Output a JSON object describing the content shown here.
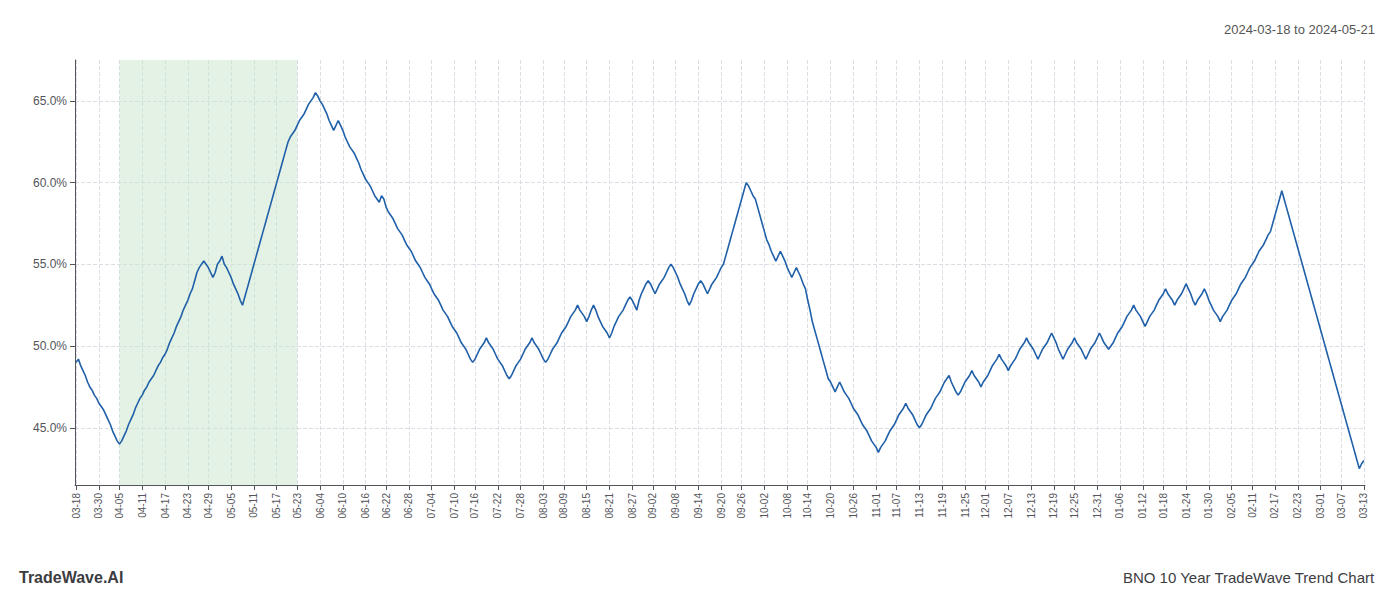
{
  "chart_data": {
    "type": "line",
    "title": "BNO 10 Year TradeWave Trend Chart",
    "subtitle": "2024-03-18 to 2024-05-21",
    "annotations": [
      "TradeWave.AI"
    ],
    "color": "#2060a8",
    "grid": true,
    "span": {
      "start": "04-05",
      "end": "05-23",
      "color": "#c8e6c9"
    },
    "ylim": [
      41.5,
      67.5
    ],
    "yticks": [
      {
        "value": 45.0,
        "label": "45.0%"
      },
      {
        "value": 50.0,
        "label": "50.0%"
      },
      {
        "value": 55.0,
        "label": "55.0%"
      },
      {
        "value": 60.0,
        "label": "60.0%"
      },
      {
        "value": 65.0,
        "label": "65.0%"
      }
    ],
    "categories": [
      "03-18",
      null,
      null,
      null,
      null,
      null,
      null,
      null,
      null,
      null,
      "03-30",
      null,
      null,
      null,
      null,
      null,
      null,
      null,
      null,
      "04-05",
      null,
      null,
      null,
      null,
      null,
      null,
      null,
      null,
      null,
      "04-11",
      null,
      null,
      null,
      null,
      null,
      null,
      null,
      null,
      null,
      "04-17",
      null,
      null,
      null,
      null,
      null,
      null,
      null,
      null,
      null,
      "04-23",
      null,
      null,
      null,
      null,
      null,
      null,
      null,
      null,
      "04-29",
      null,
      null,
      null,
      null,
      null,
      null,
      null,
      null,
      null,
      "05-05",
      null,
      null,
      null,
      null,
      null,
      null,
      null,
      null,
      null,
      "05-11",
      null,
      null,
      null,
      null,
      null,
      null,
      null,
      null,
      null,
      "05-17",
      null,
      null,
      null,
      null,
      null,
      null,
      null,
      null,
      "05-23",
      null,
      null,
      null,
      null,
      null,
      null,
      null,
      null,
      null,
      "06-04",
      null,
      null,
      null,
      null,
      null,
      null,
      null,
      null,
      null,
      "06-10",
      null,
      null,
      null,
      null,
      null,
      null,
      null,
      null,
      null,
      "06-16",
      null,
      null,
      null,
      null,
      null,
      null,
      null,
      null,
      "06-22",
      null,
      null,
      null,
      null,
      null,
      null,
      null,
      null,
      null,
      "06-28",
      null,
      null,
      null,
      null,
      null,
      null,
      null,
      null,
      null,
      "07-04",
      null,
      null,
      null,
      null,
      null,
      null,
      null,
      null,
      null,
      "07-10",
      null,
      null,
      null,
      null,
      null,
      null,
      null,
      null,
      "07-16",
      null,
      null,
      null,
      null,
      null,
      null,
      null,
      null,
      null,
      "07-22",
      null,
      null,
      null,
      null,
      null,
      null,
      null,
      null,
      null,
      "07-28",
      null,
      null,
      null,
      null,
      null,
      null,
      null,
      null,
      null,
      "08-03",
      null,
      null,
      null,
      null,
      null,
      null,
      null,
      null,
      "08-09",
      null,
      null,
      null,
      null,
      null,
      null,
      null,
      null,
      null,
      "08-15",
      null,
      null,
      null,
      null,
      null,
      null,
      null,
      null,
      null,
      "08-21",
      null,
      null,
      null,
      null,
      null,
      null,
      null,
      null,
      null,
      "08-27",
      null,
      null,
      null,
      null,
      null,
      null,
      null,
      null,
      "09-02",
      null,
      null,
      null,
      null,
      null,
      null,
      null,
      null,
      null,
      "09-08",
      null,
      null,
      null,
      null,
      null,
      null,
      null,
      null,
      null,
      "09-14",
      null,
      null,
      null,
      null,
      null,
      null,
      null,
      null,
      null,
      "09-20",
      null,
      null,
      null,
      null,
      null,
      null,
      null,
      null,
      "09-26",
      null,
      null,
      null,
      null,
      null,
      null,
      null,
      null,
      null,
      "10-02",
      null,
      null,
      null,
      null,
      null,
      null,
      null,
      null,
      null,
      "10-08",
      null,
      null,
      null,
      null,
      null,
      null,
      null,
      null,
      "10-14",
      null,
      null,
      null,
      null,
      null,
      null,
      null,
      null,
      null,
      "10-20",
      null,
      null,
      null,
      null,
      null,
      null,
      null,
      null,
      null,
      "10-26",
      null,
      null,
      null,
      null,
      null,
      null,
      null,
      null,
      null,
      "11-01",
      null,
      null,
      null,
      null,
      null,
      null,
      null,
      null,
      "11-07",
      null,
      null,
      null,
      null,
      null,
      null,
      null,
      null,
      null,
      "11-13",
      null,
      null,
      null,
      null,
      null,
      null,
      null,
      null,
      null,
      "11-19",
      null,
      null,
      null,
      null,
      null,
      null,
      null,
      null,
      null,
      "11-25",
      null,
      null,
      null,
      null,
      null,
      null,
      null,
      null,
      "12-01",
      null,
      null,
      null,
      null,
      null,
      null,
      null,
      null,
      null,
      "12-07",
      null,
      null,
      null,
      null,
      null,
      null,
      null,
      null,
      null,
      "12-13",
      null,
      null,
      null,
      null,
      null,
      null,
      null,
      null,
      null,
      "12-19",
      null,
      null,
      null,
      null,
      null,
      null,
      null,
      null,
      "12-25",
      null,
      null,
      null,
      null,
      null,
      null,
      null,
      null,
      null,
      "12-31",
      null,
      null,
      null,
      null,
      null,
      null,
      null,
      null,
      null,
      "01-06",
      null,
      null,
      null,
      null,
      null,
      null,
      null,
      null,
      null,
      "01-12",
      null,
      null,
      null,
      null,
      null,
      null,
      null,
      null,
      "01-18",
      null,
      null,
      null,
      null,
      null,
      null,
      null,
      null,
      null,
      "01-24",
      null,
      null,
      null,
      null,
      null,
      null,
      null,
      null,
      null,
      "01-30",
      null,
      null,
      null,
      null,
      null,
      null,
      null,
      null,
      null,
      "02-05",
      null,
      null,
      null,
      null,
      null,
      null,
      null,
      null,
      "02-11",
      null,
      null,
      null,
      null,
      null,
      null,
      null,
      null,
      null,
      "02-17",
      null,
      null,
      null,
      null,
      null,
      null,
      null,
      null,
      null,
      "02-23",
      null,
      null,
      null,
      null,
      null,
      null,
      null,
      null,
      null,
      "03-01",
      null,
      null,
      null,
      null,
      null,
      null,
      null,
      null,
      "03-07",
      null,
      null,
      null,
      null,
      null,
      null,
      null,
      null,
      null,
      "03-13"
    ],
    "values": [
      49.0,
      49.2,
      48.8,
      48.5,
      48.2,
      47.8,
      47.5,
      47.3,
      47.0,
      46.8,
      46.5,
      46.3,
      46.1,
      45.8,
      45.5,
      45.2,
      44.8,
      44.5,
      44.2,
      44.0,
      44.2,
      44.5,
      44.8,
      45.2,
      45.5,
      45.8,
      46.2,
      46.5,
      46.8,
      47.0,
      47.3,
      47.5,
      47.8,
      48.0,
      48.2,
      48.5,
      48.8,
      49.0,
      49.3,
      49.5,
      49.8,
      50.2,
      50.5,
      50.8,
      51.2,
      51.5,
      51.8,
      52.2,
      52.5,
      52.8,
      53.2,
      53.5,
      54.0,
      54.5,
      54.8,
      55.0,
      55.2,
      55.0,
      54.8,
      54.5,
      54.2,
      54.5,
      55.0,
      55.2,
      55.5,
      55.0,
      54.8,
      54.5,
      54.2,
      53.8,
      53.5,
      53.2,
      52.8,
      52.5,
      53.0,
      53.5,
      54.0,
      54.5,
      55.0,
      55.5,
      56.0,
      56.5,
      57.0,
      57.5,
      58.0,
      58.5,
      59.0,
      59.5,
      60.0,
      60.5,
      61.0,
      61.5,
      62.0,
      62.5,
      62.8,
      63.0,
      63.2,
      63.5,
      63.8,
      64.0,
      64.2,
      64.5,
      64.8,
      65.0,
      65.2,
      65.5,
      65.3,
      65.0,
      64.8,
      64.5,
      64.2,
      63.8,
      63.5,
      63.2,
      63.5,
      63.8,
      63.5,
      63.2,
      62.8,
      62.5,
      62.2,
      62.0,
      61.8,
      61.5,
      61.2,
      60.8,
      60.5,
      60.2,
      60.0,
      59.8,
      59.5,
      59.2,
      59.0,
      58.8,
      59.2,
      59.0,
      58.5,
      58.2,
      58.0,
      57.8,
      57.5,
      57.2,
      57.0,
      56.8,
      56.5,
      56.2,
      56.0,
      55.8,
      55.5,
      55.2,
      55.0,
      54.8,
      54.5,
      54.2,
      54.0,
      53.8,
      53.5,
      53.2,
      53.0,
      52.8,
      52.5,
      52.2,
      52.0,
      51.8,
      51.5,
      51.2,
      51.0,
      50.8,
      50.5,
      50.2,
      50.0,
      49.8,
      49.5,
      49.2,
      49.0,
      49.2,
      49.5,
      49.8,
      50.0,
      50.2,
      50.5,
      50.2,
      50.0,
      49.8,
      49.5,
      49.2,
      49.0,
      48.8,
      48.5,
      48.2,
      48.0,
      48.2,
      48.5,
      48.8,
      49.0,
      49.2,
      49.5,
      49.8,
      50.0,
      50.2,
      50.5,
      50.2,
      50.0,
      49.8,
      49.5,
      49.2,
      49.0,
      49.2,
      49.5,
      49.8,
      50.0,
      50.2,
      50.5,
      50.8,
      51.0,
      51.2,
      51.5,
      51.8,
      52.0,
      52.2,
      52.5,
      52.2,
      52.0,
      51.8,
      51.5,
      51.8,
      52.2,
      52.5,
      52.2,
      51.8,
      51.5,
      51.2,
      51.0,
      50.8,
      50.5,
      50.8,
      51.2,
      51.5,
      51.8,
      52.0,
      52.2,
      52.5,
      52.8,
      53.0,
      52.8,
      52.5,
      52.2,
      52.8,
      53.2,
      53.5,
      53.8,
      54.0,
      53.8,
      53.5,
      53.2,
      53.5,
      53.8,
      54.0,
      54.2,
      54.5,
      54.8,
      55.0,
      54.8,
      54.5,
      54.2,
      53.8,
      53.5,
      53.2,
      52.8,
      52.5,
      52.8,
      53.2,
      53.5,
      53.8,
      54.0,
      53.8,
      53.5,
      53.2,
      53.5,
      53.8,
      54.0,
      54.2,
      54.5,
      54.8,
      55.0,
      55.5,
      56.0,
      56.5,
      57.0,
      57.5,
      58.0,
      58.5,
      59.0,
      59.5,
      60.0,
      59.8,
      59.5,
      59.2,
      59.0,
      58.5,
      58.0,
      57.5,
      57.0,
      56.5,
      56.2,
      55.8,
      55.5,
      55.2,
      55.5,
      55.8,
      55.5,
      55.2,
      54.8,
      54.5,
      54.2,
      54.5,
      54.8,
      54.5,
      54.2,
      53.8,
      53.5,
      52.8,
      52.2,
      51.5,
      51.0,
      50.5,
      50.0,
      49.5,
      49.0,
      48.5,
      48.0,
      47.8,
      47.5,
      47.2,
      47.5,
      47.8,
      47.5,
      47.2,
      47.0,
      46.8,
      46.5,
      46.2,
      46.0,
      45.8,
      45.5,
      45.2,
      45.0,
      44.8,
      44.5,
      44.2,
      44.0,
      43.8,
      43.5,
      43.8,
      44.0,
      44.2,
      44.5,
      44.8,
      45.0,
      45.2,
      45.5,
      45.8,
      46.0,
      46.2,
      46.5,
      46.2,
      46.0,
      45.8,
      45.5,
      45.2,
      45.0,
      45.2,
      45.5,
      45.8,
      46.0,
      46.2,
      46.5,
      46.8,
      47.0,
      47.2,
      47.5,
      47.8,
      48.0,
      48.2,
      47.8,
      47.5,
      47.2,
      47.0,
      47.2,
      47.5,
      47.8,
      48.0,
      48.2,
      48.5,
      48.2,
      48.0,
      47.8,
      47.5,
      47.8,
      48.0,
      48.2,
      48.5,
      48.8,
      49.0,
      49.2,
      49.5,
      49.2,
      49.0,
      48.8,
      48.5,
      48.8,
      49.0,
      49.2,
      49.5,
      49.8,
      50.0,
      50.2,
      50.5,
      50.2,
      50.0,
      49.8,
      49.5,
      49.2,
      49.5,
      49.8,
      50.0,
      50.2,
      50.5,
      50.8,
      50.5,
      50.2,
      49.8,
      49.5,
      49.2,
      49.5,
      49.8,
      50.0,
      50.2,
      50.5,
      50.2,
      50.0,
      49.8,
      49.5,
      49.2,
      49.5,
      49.8,
      50.0,
      50.2,
      50.5,
      50.8,
      50.5,
      50.2,
      50.0,
      49.8,
      50.0,
      50.2,
      50.5,
      50.8,
      51.0,
      51.2,
      51.5,
      51.8,
      52.0,
      52.2,
      52.5,
      52.2,
      52.0,
      51.8,
      51.5,
      51.2,
      51.5,
      51.8,
      52.0,
      52.2,
      52.5,
      52.8,
      53.0,
      53.2,
      53.5,
      53.2,
      53.0,
      52.8,
      52.5,
      52.8,
      53.0,
      53.2,
      53.5,
      53.8,
      53.5,
      53.2,
      52.8,
      52.5,
      52.8,
      53.0,
      53.2,
      53.5,
      53.2,
      52.8,
      52.5,
      52.2,
      52.0,
      51.8,
      51.5,
      51.8,
      52.0,
      52.2,
      52.5,
      52.8,
      53.0,
      53.2,
      53.5,
      53.8,
      54.0,
      54.2,
      54.5,
      54.8,
      55.0,
      55.2,
      55.5,
      55.8,
      56.0,
      56.2,
      56.5,
      56.8,
      57.0,
      57.5,
      58.0,
      58.5,
      59.0,
      59.5,
      59.0,
      58.5,
      58.0,
      57.5,
      57.0,
      56.5,
      56.0,
      55.5,
      55.0,
      54.5,
      54.0,
      53.5,
      53.0,
      52.5,
      52.0,
      51.5,
      51.0,
      50.5,
      50.0,
      49.5,
      49.0,
      48.5,
      48.0,
      47.5,
      47.0,
      46.5,
      46.0,
      45.5,
      45.0,
      44.5,
      44.0,
      43.5,
      43.0,
      42.5,
      42.8,
      43.0
    ]
  }
}
